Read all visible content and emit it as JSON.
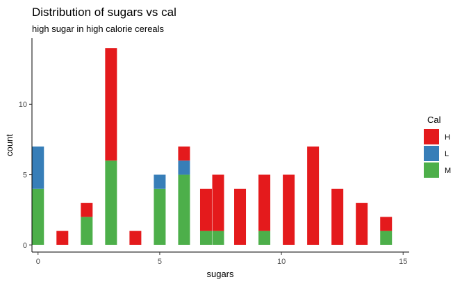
{
  "chart_data": {
    "type": "bar",
    "stacked": true,
    "title": "Distribution of sugars vs cal",
    "subtitle": "high sugar in high calorie cereals",
    "xlabel": "sugars",
    "ylabel": "count",
    "xlim": [
      -0.25,
      15.25
    ],
    "ylim": [
      -0.5,
      14.7
    ],
    "x_ticks": [
      0,
      5,
      10,
      15
    ],
    "y_ticks": [
      0,
      5,
      10
    ],
    "grid": false,
    "legend": {
      "title": "Cal",
      "position": "right",
      "entries": [
        "H",
        "L",
        "M"
      ]
    },
    "colors": {
      "H": "#e41a1c",
      "L": "#377eb8",
      "M": "#4daf4a"
    },
    "bars": [
      {
        "x": 0,
        "M": 4,
        "L": 3,
        "H": 0
      },
      {
        "x": 1,
        "M": 0,
        "L": 0,
        "H": 1
      },
      {
        "x": 2,
        "M": 2,
        "L": 0,
        "H": 1
      },
      {
        "x": 3,
        "M": 6,
        "L": 0,
        "H": 8
      },
      {
        "x": 4,
        "M": 0,
        "L": 0,
        "H": 1
      },
      {
        "x": 5,
        "M": 4,
        "L": 1,
        "H": 0
      },
      {
        "x": 6,
        "M": 5,
        "L": 1,
        "H": 1
      },
      {
        "x": 6.9,
        "M": 1,
        "L": 0,
        "H": 3
      },
      {
        "x": 7.4,
        "M": 1,
        "L": 0,
        "H": 4
      },
      {
        "x": 8.3,
        "M": 0,
        "L": 0,
        "H": 4
      },
      {
        "x": 9.3,
        "M": 1,
        "L": 0,
        "H": 4
      },
      {
        "x": 10.3,
        "M": 0,
        "L": 0,
        "H": 5
      },
      {
        "x": 11.3,
        "M": 0,
        "L": 0,
        "H": 7
      },
      {
        "x": 12.3,
        "M": 0,
        "L": 0,
        "H": 4
      },
      {
        "x": 13.3,
        "M": 0,
        "L": 0,
        "H": 3
      },
      {
        "x": 14.3,
        "M": 1,
        "L": 0,
        "H": 1
      }
    ]
  }
}
